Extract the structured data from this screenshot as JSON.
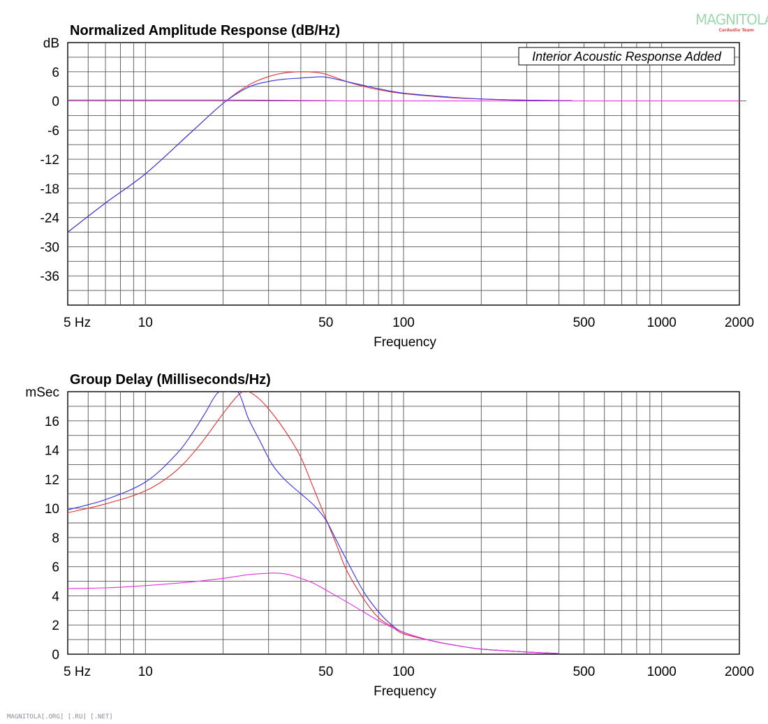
{
  "watermark": {
    "brand": "MAGNITOLA",
    "sub": "CarAudio Team"
  },
  "footer_text": "MAGNITOLA[.ORG] [.RU] [.NET]",
  "chart_data": [
    {
      "type": "line",
      "title": "Normalized Amplitude Response (dB/Hz)",
      "xlabel": "Frequency",
      "ylabel": "dB",
      "x_scale": "log",
      "xlim": [
        5,
        2000
      ],
      "ylim": [
        -42,
        12
      ],
      "x_tick_labels": [
        "5  Hz",
        "10",
        "50",
        "100",
        "500",
        "1000",
        "2000"
      ],
      "x_tick_values": [
        5,
        10,
        50,
        100,
        500,
        1000,
        2000
      ],
      "y_tick_labels": [
        "dB",
        "6",
        "0",
        "-6",
        "-12",
        "-18",
        "-24",
        "-30",
        "-36"
      ],
      "y_tick_values": [
        12,
        6,
        0,
        -6,
        -12,
        -18,
        -24,
        -30,
        -36
      ],
      "grid": true,
      "annotation": "Interior Acoustic Response Added",
      "colors": {
        "red": "#e03030",
        "blue": "#3030e0",
        "magenta": "#e030e0"
      },
      "series": [
        {
          "color": "red",
          "x": [
            5,
            7,
            10,
            15,
            20,
            25,
            30,
            35,
            40,
            45,
            50,
            60,
            70,
            80,
            100,
            150,
            200,
            300,
            450
          ],
          "y": [
            -27,
            -21,
            -15,
            -6.5,
            -0.5,
            3.2,
            5.0,
            5.8,
            6.0,
            5.9,
            5.5,
            4.0,
            3.0,
            2.3,
            1.5,
            0.7,
            0.4,
            0.15,
            0.05
          ]
        },
        {
          "color": "blue",
          "x": [
            5,
            7,
            10,
            15,
            20,
            25,
            30,
            35,
            40,
            45,
            50,
            60,
            70,
            80,
            100,
            150,
            200,
            300,
            450
          ],
          "y": [
            -27,
            -21,
            -15,
            -6.5,
            -0.5,
            2.8,
            4.0,
            4.5,
            4.7,
            4.9,
            4.9,
            4.0,
            3.2,
            2.5,
            1.6,
            0.8,
            0.4,
            0.15,
            0.05
          ]
        },
        {
          "color": "magenta",
          "x": [
            5,
            10,
            20,
            30,
            40,
            50,
            60,
            80,
            100,
            200,
            500,
            1000,
            2000
          ],
          "y": [
            0.2,
            0.2,
            0.2,
            0.15,
            0.1,
            0.05,
            0.0,
            0.0,
            0.0,
            0.0,
            0.0,
            0.0,
            0.0
          ]
        }
      ]
    },
    {
      "type": "line",
      "title": "Group Delay (Milliseconds/Hz)",
      "xlabel": "Frequency",
      "ylabel": "mSec",
      "x_scale": "log",
      "xlim": [
        5,
        2000
      ],
      "ylim": [
        0,
        18
      ],
      "x_tick_labels": [
        "5  Hz",
        "10",
        "50",
        "100",
        "500",
        "1000",
        "2000"
      ],
      "x_tick_values": [
        5,
        10,
        50,
        100,
        500,
        1000,
        2000
      ],
      "y_tick_labels": [
        "mSec",
        "16",
        "14",
        "12",
        "10",
        "8",
        "6",
        "4",
        "2",
        "0"
      ],
      "y_tick_values": [
        18,
        16,
        14,
        12,
        10,
        8,
        6,
        4,
        2,
        0
      ],
      "grid": true,
      "colors": {
        "red": "#e03030",
        "blue": "#3030e0",
        "magenta": "#e030e0"
      },
      "series": [
        {
          "color": "red",
          "x": [
            5,
            7,
            10,
            13,
            16,
            20,
            23,
            25,
            28,
            32,
            36,
            40,
            45,
            50,
            55,
            60,
            70,
            80,
            90,
            100,
            130,
            160,
            200,
            300,
            400
          ],
          "y": [
            9.7,
            10.3,
            11.2,
            12.5,
            14.2,
            16.5,
            17.8,
            18.0,
            17.4,
            16.2,
            14.9,
            13.5,
            11.3,
            9.3,
            7.5,
            5.8,
            3.8,
            2.5,
            1.9,
            1.4,
            0.9,
            0.6,
            0.35,
            0.15,
            0.05
          ]
        },
        {
          "color": "blue",
          "x": [
            5,
            7,
            10,
            13,
            15,
            17,
            19,
            21,
            23,
            25,
            28,
            31,
            35,
            40,
            45,
            50,
            55,
            60,
            70,
            80,
            90,
            100,
            130,
            160,
            200,
            300,
            400
          ],
          "y": [
            9.9,
            10.6,
            11.8,
            13.6,
            15.0,
            16.5,
            17.9,
            18.0,
            17.9,
            16.2,
            14.5,
            13.0,
            11.9,
            11.0,
            10.2,
            9.2,
            7.8,
            6.5,
            4.3,
            2.9,
            2.0,
            1.5,
            0.9,
            0.6,
            0.35,
            0.15,
            0.05
          ]
        },
        {
          "color": "magenta",
          "x": [
            5,
            7,
            10,
            15,
            20,
            25,
            30,
            33,
            36,
            40,
            45,
            50,
            60,
            70,
            80,
            100,
            130,
            160,
            200,
            300,
            400
          ],
          "y": [
            4.5,
            4.55,
            4.7,
            4.95,
            5.2,
            5.45,
            5.55,
            5.55,
            5.45,
            5.2,
            4.85,
            4.4,
            3.6,
            2.9,
            2.3,
            1.5,
            0.9,
            0.6,
            0.35,
            0.15,
            0.05
          ]
        }
      ]
    }
  ]
}
